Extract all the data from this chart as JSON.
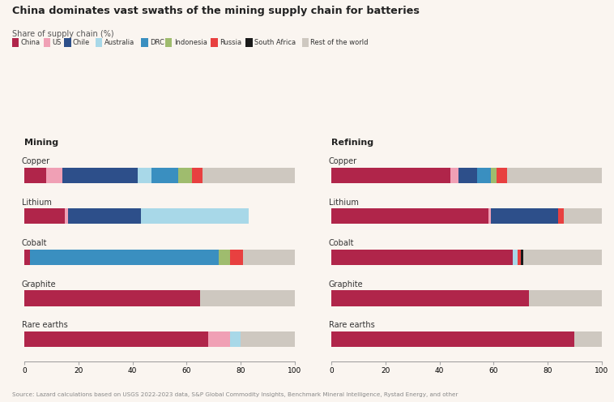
{
  "title": "China dominates vast swaths of the mining supply chain for batteries",
  "subtitle": "Share of supply chain (%)",
  "background_color": "#faf5f0",
  "categories": [
    "Copper",
    "Lithium",
    "Cobalt",
    "Graphite",
    "Rare earths"
  ],
  "countries": [
    "China",
    "US",
    "Chile",
    "Australia",
    "DRC",
    "Indonesia",
    "Russia",
    "South Africa",
    "Rest of the world"
  ],
  "colors": {
    "China": "#b0254a",
    "US": "#f0a0b5",
    "Chile": "#2d4f8a",
    "Australia": "#a8d8e8",
    "DRC": "#3a8fc0",
    "Indonesia": "#9fbc6e",
    "Russia": "#e84040",
    "South Africa": "#1a1a1a",
    "Rest of the world": "#cec8c0"
  },
  "mining_data": {
    "Copper": [
      8,
      6,
      28,
      5,
      10,
      5,
      4,
      0,
      34
    ],
    "Lithium": [
      15,
      1,
      27,
      40,
      0,
      0,
      0,
      0,
      0
    ],
    "Cobalt": [
      2,
      0,
      0,
      0,
      70,
      4,
      5,
      0,
      19
    ],
    "Graphite": [
      65,
      0,
      0,
      0,
      0,
      0,
      0,
      0,
      35
    ],
    "Rare earths": [
      68,
      8,
      0,
      4,
      0,
      0,
      0,
      0,
      20
    ]
  },
  "refining_data": {
    "Copper": [
      44,
      3,
      7,
      0,
      5,
      2,
      4,
      0,
      35
    ],
    "Lithium": [
      58,
      1,
      25,
      0,
      0,
      0,
      2,
      0,
      14
    ],
    "Cobalt": [
      67,
      0,
      0,
      2,
      0,
      0,
      1,
      1,
      29
    ],
    "Graphite": [
      73,
      0,
      0,
      0,
      0,
      0,
      0,
      0,
      27
    ],
    "Rare earths": [
      90,
      0,
      0,
      0,
      0,
      0,
      0,
      0,
      10
    ]
  },
  "source": "Source: Lazard calculations based on USGS 2022-2023 data, S&P Global Commodity Insights, Benchmark Mineral Intelligence, Rystad Energy, and other"
}
